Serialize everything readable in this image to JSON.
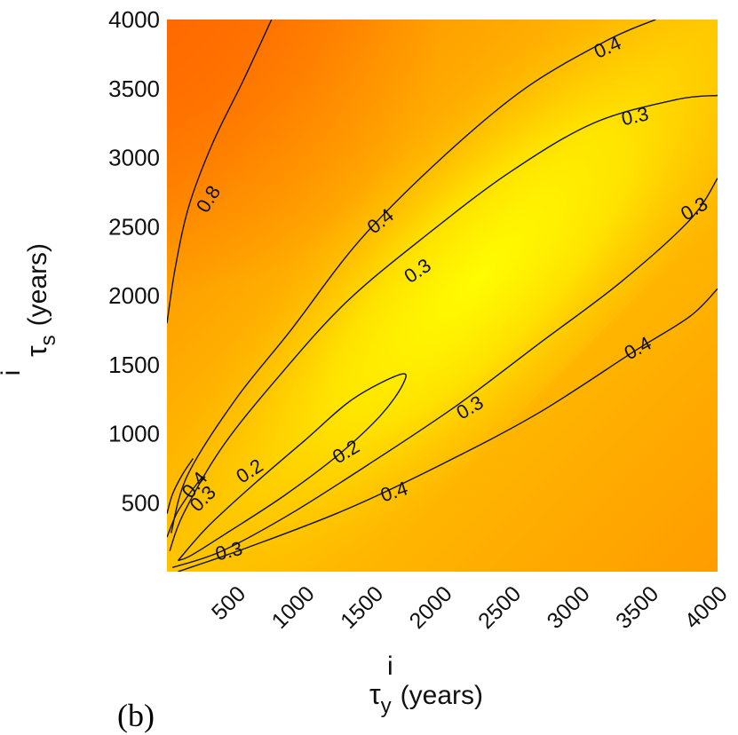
{
  "chart_data": {
    "type": "heatmap",
    "panel_label": "(b)",
    "xlabel": {
      "symbol": "τ",
      "superscript": "i",
      "subscript": "y",
      "unit": "(years)"
    },
    "ylabel": {
      "symbol": "τ",
      "superscript": "i",
      "subscript": "s",
      "unit": "(years)"
    },
    "xlim": [
      0,
      4000
    ],
    "ylim": [
      0,
      4000
    ],
    "x_ticks": [
      "500",
      "1000",
      "1500",
      "2000",
      "2500",
      "3000",
      "3500",
      "4000"
    ],
    "y_ticks": [
      "500",
      "1000",
      "1500",
      "2000",
      "2500",
      "3000",
      "3500",
      "4000"
    ],
    "colormap": [
      "#ffff00",
      "#ffc400",
      "#ff9c00",
      "#ff6a00"
    ],
    "contour_levels": [
      0.2,
      0.3,
      0.4,
      0.8
    ],
    "contour_labels": [
      {
        "text": "0.8",
        "x": 300,
        "y": 2700,
        "angle": -58
      },
      {
        "text": "0.4",
        "x": 3200,
        "y": 3800,
        "angle": -24
      },
      {
        "text": "0.3",
        "x": 3400,
        "y": 3300,
        "angle": -12
      },
      {
        "text": "0.3",
        "x": 3830,
        "y": 2630,
        "angle": -30
      },
      {
        "text": "0.4",
        "x": 1550,
        "y": 2540,
        "angle": -38
      },
      {
        "text": "0.3",
        "x": 1820,
        "y": 2180,
        "angle": -34
      },
      {
        "text": "0.2",
        "x": 600,
        "y": 730,
        "angle": -33
      },
      {
        "text": "0.2",
        "x": 1300,
        "y": 870,
        "angle": -31
      },
      {
        "text": "0.4",
        "x": 3420,
        "y": 1620,
        "angle": -28
      },
      {
        "text": "0.3",
        "x": 2200,
        "y": 1190,
        "angle": -30
      },
      {
        "text": "0.4",
        "x": 1650,
        "y": 580,
        "angle": -18
      },
      {
        "text": "0.3",
        "x": 450,
        "y": 150,
        "angle": -14
      },
      {
        "text": "0.4",
        "x": 200,
        "y": 630,
        "angle": -50
      },
      {
        "text": "0.3",
        "x": 260,
        "y": 530,
        "angle": -45
      }
    ]
  }
}
